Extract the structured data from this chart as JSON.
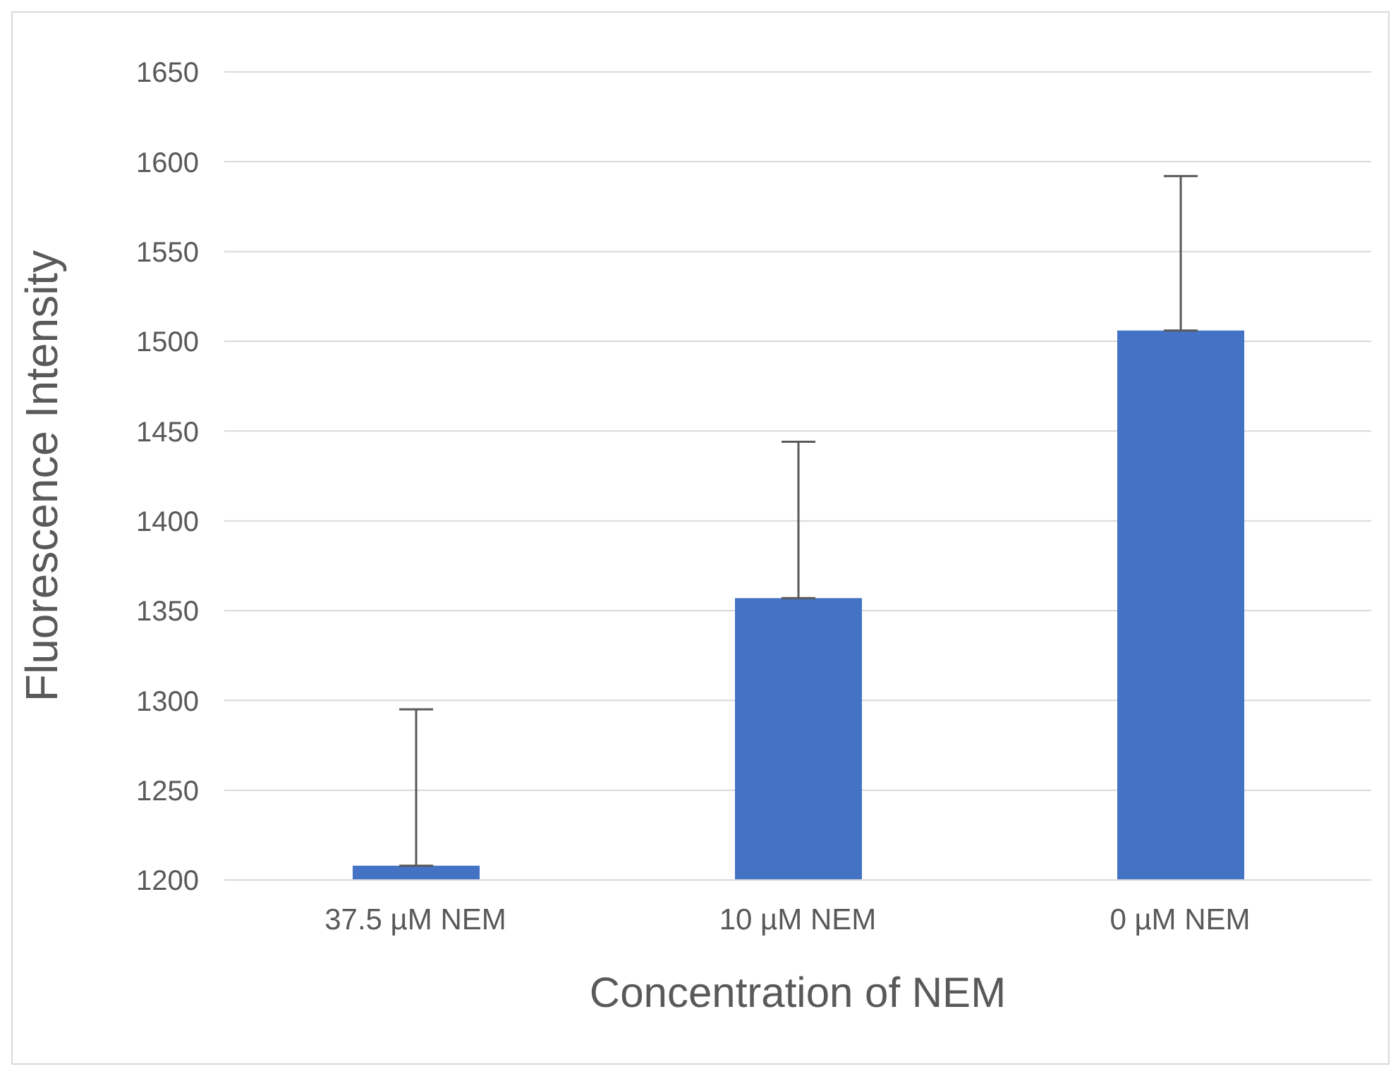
{
  "chart_data": {
    "type": "bar",
    "xlabel": "Concentration of NEM",
    "ylabel": "Fluorescence Intensity",
    "categories": [
      "37.5 µM NEM",
      "10 µM NEM",
      "0 µM NEM"
    ],
    "values": [
      1208,
      1357,
      1506
    ],
    "errors": [
      [
        1208,
        1295
      ],
      [
        1357,
        1444
      ],
      [
        1506,
        1592
      ]
    ],
    "color": "#4472c4",
    "ylim": [
      1200,
      1650
    ],
    "yticks": [
      1200,
      1250,
      1300,
      1350,
      1400,
      1450,
      1500,
      1550,
      1600,
      1650
    ],
    "grid": "y"
  }
}
